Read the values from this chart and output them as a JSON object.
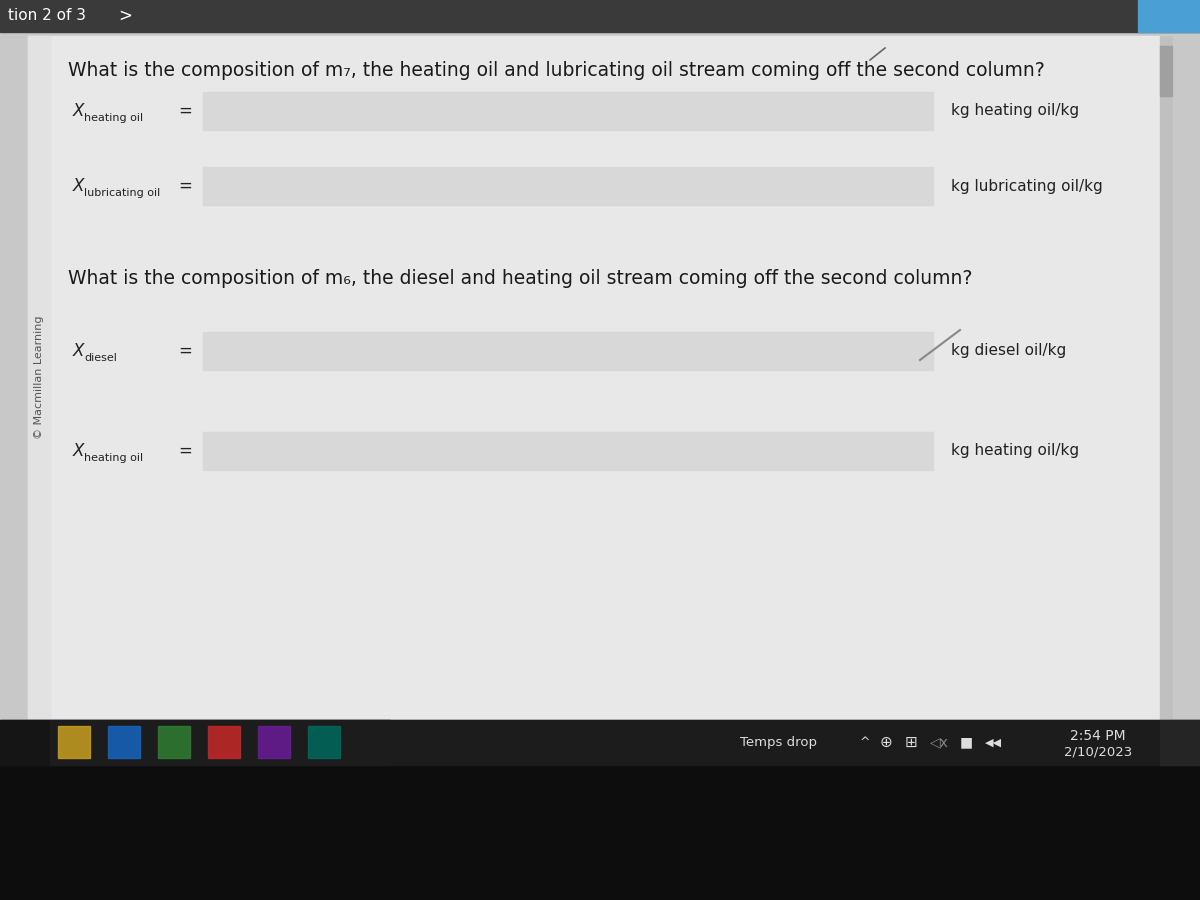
{
  "outer_bg": "#1a1a1a",
  "content_bg": "#e8e8e8",
  "input_bg": "#d8d8d8",
  "input_border": "#999999",
  "header_bg": "#3a3a3a",
  "header_text": "#ffffff",
  "top_accent": "#4a9fd4",
  "dark_gray": "#2a2a2a",
  "text_color": "#1a1a1a",
  "label_color": "#222222",
  "unit_color": "#111111",
  "sidebar_color": "#555555",
  "taskbar_bg": "#111111",
  "taskbar_text": "#dddddd",
  "bottom_bg": "#0a0a0a",
  "question1": "What is the composition of m₇, the heating oil and lubricating oil stream coming off the second column?",
  "question2": "What is the composition of m₆, the diesel and heating oil stream coming off the second column?",
  "label1a_x": "X",
  "label1a_sub": "heating oil",
  "label1b_x": "X",
  "label1b_sub": "lubricating oil",
  "label2a_x": "X",
  "label2a_sub": "diesel",
  "label2b_x": "X",
  "label2b_sub": "heating oil",
  "unit1a": "kg heating oil/kg",
  "unit1b": "kg lubricating oil/kg",
  "unit2a": "kg diesel oil/kg",
  "unit2b": "kg heating oil/kg",
  "sidebar_text": "© Macmillan Learning",
  "section_text": "tion 2 of 3",
  "chevron": ">",
  "time_text": "2:54 PM",
  "date_text": "2/10/2023",
  "temps_drop_text": "Temps drop"
}
